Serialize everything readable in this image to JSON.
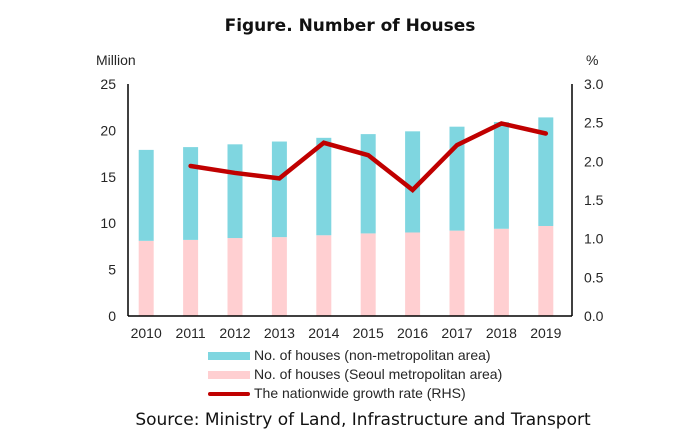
{
  "chart_data": {
    "type": "bar",
    "subtype": "stacked-bar-with-line",
    "title": "Figure. Number of Houses",
    "categories": [
      "2010",
      "2011",
      "2012",
      "2013",
      "2014",
      "2015",
      "2016",
      "2017",
      "2018",
      "2019"
    ],
    "series": [
      {
        "name": "No. of houses (Seoul metropolitan area)",
        "type": "bar",
        "stack": "houses",
        "axis": "left",
        "color": "#FFCFD1",
        "values": [
          8.1,
          8.2,
          8.4,
          8.5,
          8.7,
          8.9,
          9.0,
          9.2,
          9.4,
          9.7
        ]
      },
      {
        "name": "No. of houses (non-metropolitan area)",
        "type": "bar",
        "stack": "houses",
        "axis": "left",
        "color": "#7FD6E0",
        "values": [
          9.8,
          10.0,
          10.1,
          10.3,
          10.5,
          10.7,
          10.9,
          11.2,
          11.5,
          11.7
        ]
      },
      {
        "name": "The nationwide growth rate (RHS)",
        "type": "line",
        "axis": "right",
        "color": "#C00000",
        "values": [
          null,
          1.94,
          1.85,
          1.78,
          2.24,
          2.08,
          1.63,
          2.21,
          2.49,
          2.36
        ]
      }
    ],
    "left_axis": {
      "label": "Million",
      "ylim": [
        0,
        25
      ],
      "ticks": [
        "0",
        "5",
        "10",
        "15",
        "20",
        "25"
      ],
      "tick_values": [
        0,
        5,
        10,
        15,
        20,
        25
      ]
    },
    "right_axis": {
      "label": "%",
      "ylim": [
        0,
        3.0
      ],
      "ticks": [
        "0.0",
        "0.5",
        "1.0",
        "1.5",
        "2.0",
        "2.5",
        "3.0"
      ],
      "tick_values": [
        0,
        0.5,
        1.0,
        1.5,
        2.0,
        2.5,
        3.0
      ]
    },
    "grid": false,
    "legend": {
      "placement": "bottom",
      "entries": [
        {
          "label": "No. of houses (non-metropolitan area)",
          "color": "#7FD6E0",
          "kind": "bar"
        },
        {
          "label": "No. of houses (Seoul metropolitan area)",
          "color": "#FFCFD1",
          "kind": "bar"
        },
        {
          "label": "The nationwide growth rate (RHS)",
          "color": "#C00000",
          "kind": "line"
        }
      ]
    },
    "source": "Source: Ministry of Land, Infrastructure and Transport"
  }
}
